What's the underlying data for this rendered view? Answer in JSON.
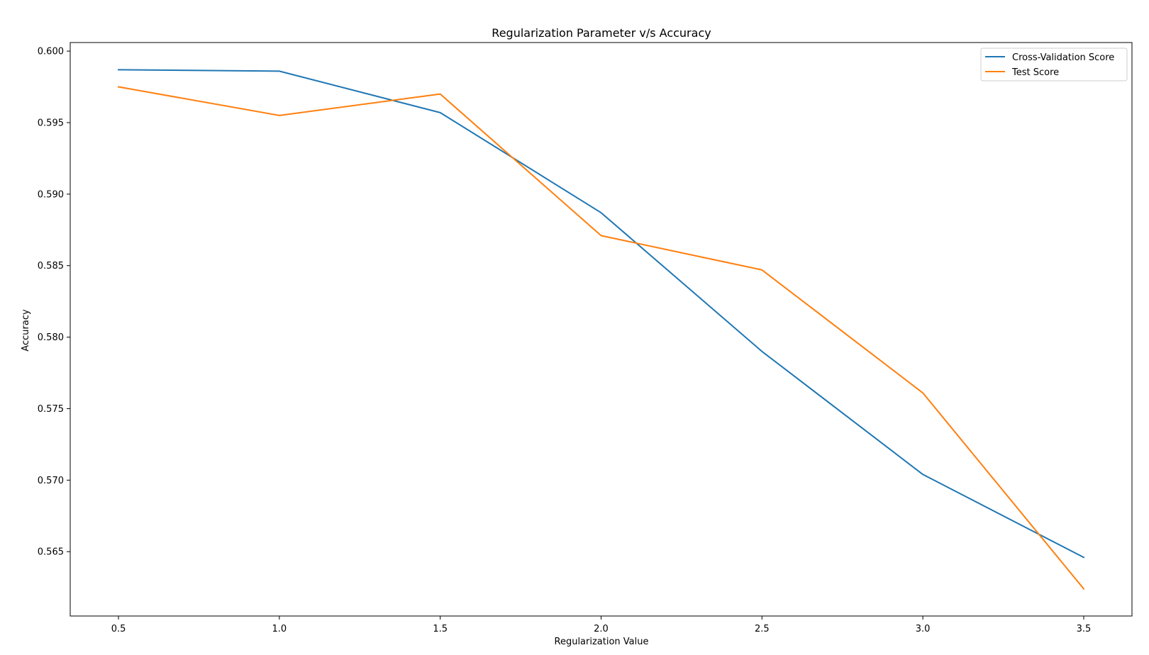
{
  "chart_data": {
    "type": "line",
    "title": "Regularization Parameter v/s Accuracy",
    "xlabel": "Regularization Value",
    "ylabel": "Accuracy",
    "x": [
      0.5,
      1.0,
      1.5,
      2.0,
      2.5,
      3.0,
      3.5
    ],
    "xlim": [
      0.35,
      3.65
    ],
    "ylim": [
      0.5605,
      0.6006
    ],
    "xticks": [
      0.5,
      1.0,
      1.5,
      2.0,
      2.5,
      3.0,
      3.5
    ],
    "xtick_labels": [
      "0.5",
      "1.0",
      "1.5",
      "2.0",
      "2.5",
      "3.0",
      "3.5"
    ],
    "yticks": [
      0.565,
      0.57,
      0.575,
      0.58,
      0.585,
      0.59,
      0.595,
      0.6
    ],
    "ytick_labels": [
      "0.565",
      "0.570",
      "0.575",
      "0.580",
      "0.585",
      "0.590",
      "0.595",
      "0.600"
    ],
    "grid": false,
    "legend_position": "top-right",
    "series": [
      {
        "name": "Cross-Validation Score",
        "color": "#1f77b4",
        "values": [
          0.5987,
          0.5986,
          0.5957,
          0.5887,
          0.579,
          0.5704,
          0.5646
        ]
      },
      {
        "name": "Test Score",
        "color": "#ff7f0e",
        "values": [
          0.5975,
          0.5955,
          0.597,
          0.5871,
          0.5847,
          0.5761,
          0.5624
        ]
      }
    ]
  }
}
